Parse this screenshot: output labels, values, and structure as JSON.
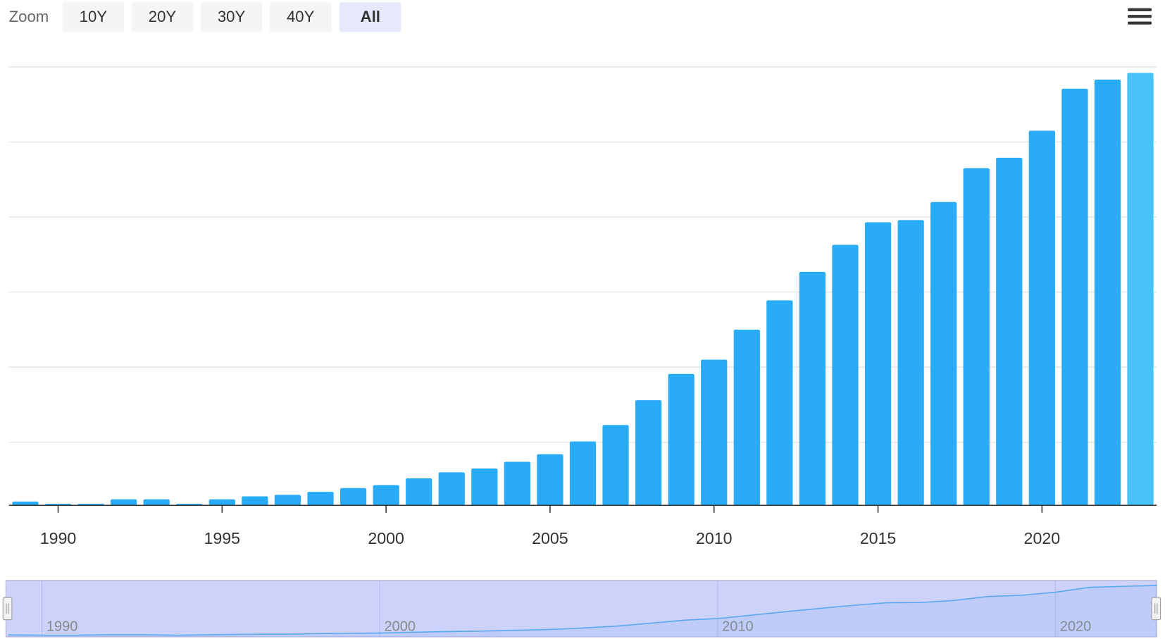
{
  "chart_data": {
    "type": "bar",
    "range_selector": {
      "label": "Zoom",
      "buttons": [
        "10Y",
        "20Y",
        "30Y",
        "40Y",
        "All"
      ],
      "selected": 4
    },
    "x": [
      1989,
      1990,
      1991,
      1992,
      1993,
      1994,
      1995,
      1996,
      1997,
      1998,
      1999,
      2000,
      2001,
      2002,
      2003,
      2004,
      2005,
      2006,
      2007,
      2008,
      2009,
      2010,
      2011,
      2012,
      2013,
      2014,
      2015,
      2016,
      2017,
      2018,
      2019,
      2020,
      2021,
      2022,
      2023
    ],
    "values": [
      5,
      2,
      2,
      8,
      8,
      2,
      8,
      12,
      14,
      18,
      23,
      27,
      36,
      44,
      49,
      58,
      68,
      85,
      107,
      140,
      175,
      194,
      234,
      273,
      311,
      347,
      377,
      380,
      404,
      449,
      463,
      499,
      555,
      567,
      576
    ],
    "color": "#29abf8",
    "highlight": {
      "index": 34,
      "color": "#47c3f9"
    },
    "xlim": [
      1988.5,
      2023.5
    ],
    "xticks": [
      1990,
      1995,
      2000,
      2005,
      2010,
      2015,
      2020
    ],
    "ylim": [
      0,
      584
    ],
    "yticks": [
      84,
      184,
      284,
      384,
      484,
      584
    ],
    "grid": true,
    "navigator": {
      "xlim": [
        1989,
        2023
      ],
      "xticks": [
        1990,
        2000,
        2010,
        2020
      ],
      "color": "#5aa8f0"
    }
  }
}
